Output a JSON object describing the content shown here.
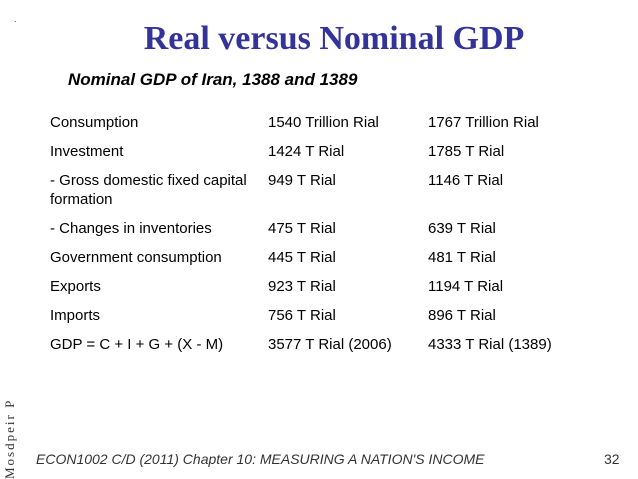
{
  "slide": {
    "title": "Real versus Nominal GDP",
    "subtitle": "Nominal GDP of Iran, 1388 and 1389",
    "side_text": "Mosdpeir P",
    "footer": "ECON1002 C/D (2011) Chapter 10: MEASURING A NATION'S INCOME",
    "page_number": "32"
  },
  "table": {
    "rows": [
      {
        "item": "Consumption",
        "v1388": "1540 Trillion Rial",
        "v1389": "1767 Trillion Rial"
      },
      {
        "item": "Investment",
        "v1388": "1424 T Rial",
        "v1389": "1785 T Rial"
      },
      {
        "item": "- Gross domestic fixed capital formation",
        "v1388": "949 T Rial",
        "v1389": "1146 T Rial"
      },
      {
        "item": "- Changes in inventories",
        "v1388": "475 T Rial",
        "v1389": "639 T Rial"
      },
      {
        "item": "Government consumption",
        "v1388": "445 T Rial",
        "v1389": "481 T Rial"
      },
      {
        "item": "Exports",
        "v1388": "923 T Rial",
        "v1389": "1194 T Rial"
      },
      {
        "item": "Imports",
        "v1388": "756 T Rial",
        "v1389": "896 T Rial"
      },
      {
        "item": "GDP = C + I + G + (X - M)",
        "v1388": "3577 T Rial (2006)",
        "v1389": "4333 T Rial (1389)"
      }
    ]
  }
}
